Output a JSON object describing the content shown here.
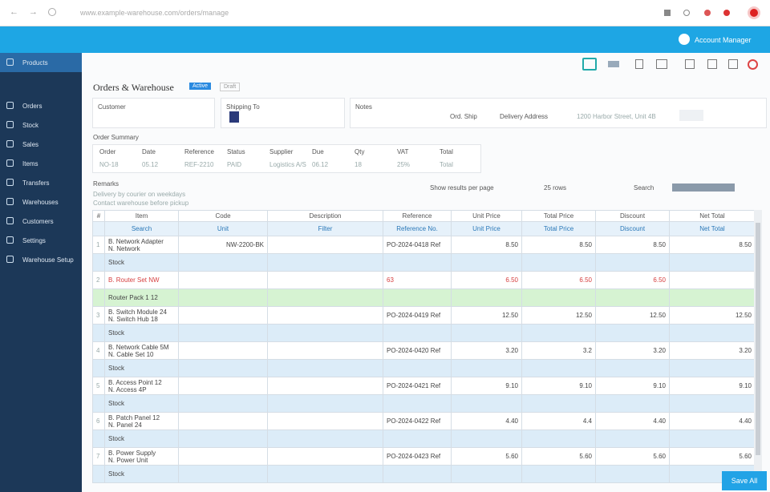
{
  "browser": {
    "url": "www.example-warehouse.com/orders/manage"
  },
  "header": {
    "user": "Account Manager"
  },
  "sidebar": {
    "items": [
      "Products",
      "Orders",
      "Stock",
      "Sales",
      "Items",
      "Transfers",
      "Warehouses",
      "Customers",
      "Settings",
      "Warehouse Setup"
    ]
  },
  "page": {
    "title": "Orders & Warehouse",
    "badge": "Active",
    "tag": "Draft"
  },
  "info": {
    "customer": "Customer",
    "shipping": "Shipping To",
    "notes": "Notes",
    "ship_label": "Ord. Ship",
    "address_label": "Delivery Address",
    "address": "1200 Harbor Street, Unit 4B"
  },
  "summary": {
    "title": "Order Summary",
    "fields": [
      {
        "label": "Order",
        "value": "NO-18"
      },
      {
        "label": "Date",
        "value": "05.12"
      },
      {
        "label": "Reference",
        "value": "REF-2210"
      },
      {
        "label": "Status",
        "value": "PAID"
      },
      {
        "label": "Supplier",
        "value": "Logistics A/S"
      },
      {
        "label": "Due",
        "value": "06.12"
      },
      {
        "label": "Qty",
        "value": "18"
      },
      {
        "label": "VAT",
        "value": "25%"
      },
      {
        "label": "Total",
        "value": "Total"
      }
    ]
  },
  "notes": {
    "title": "Remarks",
    "lines": [
      "Delivery by courier on weekdays",
      "Contact warehouse before pickup"
    ]
  },
  "paging": {
    "label": "Show results per page",
    "per_page": "25 rows",
    "search": "Search"
  },
  "table": {
    "columns": [
      "#",
      "Item",
      "Code",
      "Description",
      "Reference",
      "Unit Price",
      "Total Price",
      "Discount",
      "Net Total"
    ],
    "filters": [
      "Search",
      "Unit",
      "Filter",
      "Reference No.",
      "Unit Price",
      "Total Price",
      "Discount",
      "Net Total"
    ],
    "rows": [
      {
        "num": "1",
        "item": "B. Network Adapter",
        "detail": "N. Network",
        "sub": "Stock",
        "code": "NW-2200-BK",
        "ref": "PO-2024-0418 Ref",
        "price": "8.50",
        "total": "8.50",
        "disc": "8.50",
        "net": "8.50"
      },
      {
        "num": "2",
        "item": "B. Router Set   NW",
        "sub": "Router Pack 1 12",
        "ref": "63",
        "price": "6.50",
        "total": "6.50",
        "disc": "6.50",
        "alert": true
      },
      {
        "num": "3",
        "item": "B. Switch Module 24",
        "detail": "N. Switch Hub 18",
        "sub": "Stock",
        "ref": "PO-2024-0419 Ref",
        "price": "12.50",
        "total": "12.50",
        "disc": "12.50",
        "net": "12.50"
      },
      {
        "num": "4",
        "item": "B. Network Cable 5M",
        "detail": "N. Cable Set 10",
        "sub": "Stock",
        "ref": "PO-2024-0420 Ref",
        "price": "3.20",
        "total": "3.2",
        "disc": "3.20",
        "net": "3.20"
      },
      {
        "num": "5",
        "item": "B. Access Point 12",
        "detail": "N. Access 4P",
        "sub": "Stock",
        "ref": "PO-2024-0421 Ref",
        "price": "9.10",
        "total": "9.10",
        "disc": "9.10",
        "net": "9.10"
      },
      {
        "num": "6",
        "item": "B. Patch Panel 12",
        "detail": "N. Panel 24",
        "sub": "Stock",
        "ref": "PO-2024-0422 Ref",
        "price": "4.40",
        "total": "4.4",
        "disc": "4.40",
        "net": "4.40"
      },
      {
        "num": "7",
        "item": "B. Power Supply",
        "detail": "N. Power Unit",
        "sub": "Stock",
        "ref": "PO-2024-0423 Ref",
        "price": "5.60",
        "total": "5.60",
        "disc": "5.60",
        "net": "5.60"
      }
    ]
  },
  "actions": {
    "save": "Save All"
  }
}
